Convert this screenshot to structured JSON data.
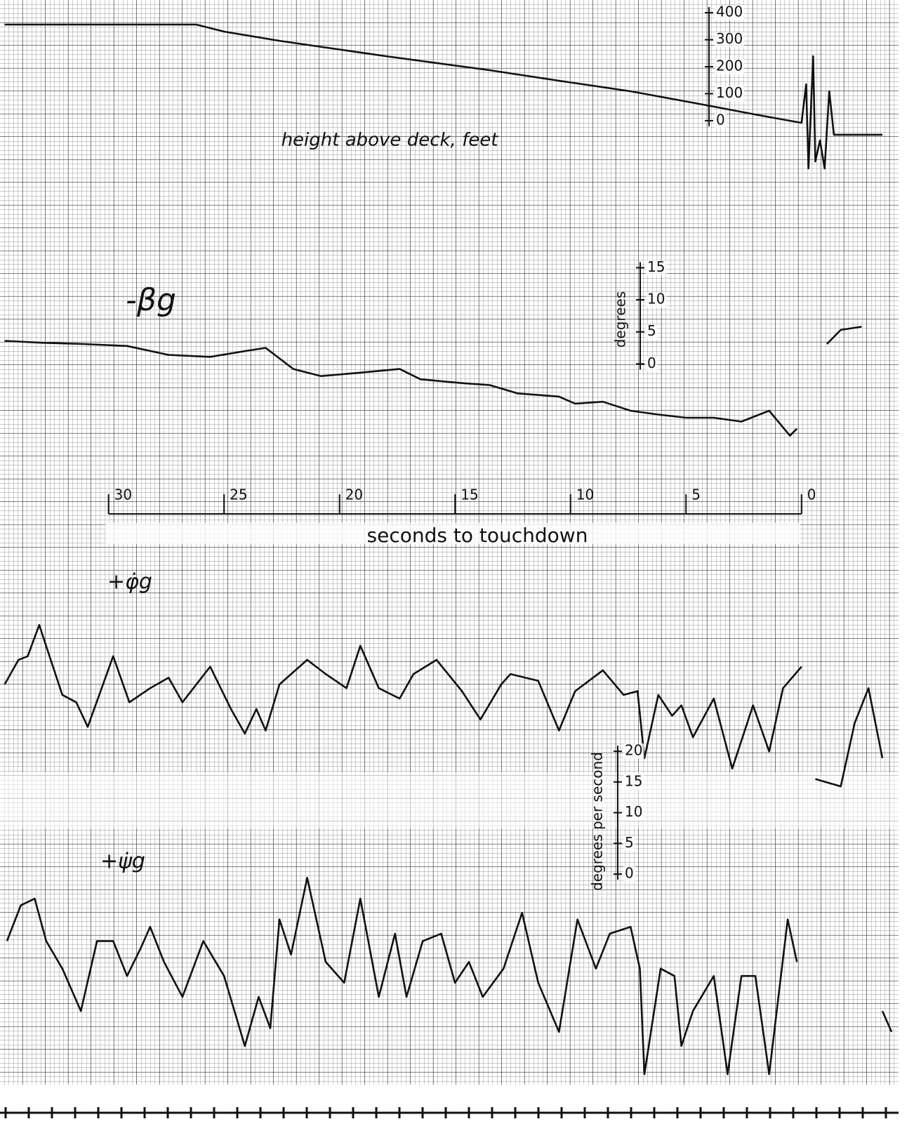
{
  "chart_data": [
    {
      "type": "line",
      "title": "height above deck, feet",
      "color": "#111",
      "grid": true,
      "xlim": [
        34.7,
        -4.2
      ],
      "ylim": [
        -229,
        447
      ],
      "yticks": [
        0,
        100,
        200,
        300,
        400
      ],
      "x": [
        34.5,
        26.2,
        25.0,
        22.6,
        20.5,
        18.0,
        13.5,
        10.5,
        7.4,
        4.4,
        2.0,
        0.0,
        -0.2,
        -0.3,
        -0.5,
        -0.6,
        -0.8,
        -1.0,
        -1.2,
        -1.4,
        -3.5
      ],
      "values": [
        356,
        356,
        330,
        296,
        270,
        239,
        187,
        148,
        109,
        62,
        23,
        -8,
        135,
        -177,
        239,
        -151,
        -73,
        -177,
        109,
        -52,
        -52
      ]
    },
    {
      "type": "line",
      "title": "-βg",
      "ylabel": "degrees",
      "color": "#111",
      "grid": true,
      "xlim": [
        34.7,
        -4.2
      ],
      "xticks": [
        30,
        25,
        20,
        15,
        10,
        5,
        0
      ],
      "xlabel": "seconds to touchdown",
      "ylim": [
        -18.8,
        26.1
      ],
      "yticks": [
        0,
        5,
        10,
        15
      ],
      "x": [
        34.5,
        32.9,
        31.1,
        29.2,
        27.4,
        25.6,
        24.1,
        23.2,
        22.0,
        20.8,
        18.9,
        17.4,
        16.5,
        14.7,
        13.5,
        12.3,
        10.5,
        9.8,
        8.6,
        7.4,
        6.2,
        5.0,
        3.8,
        2.6,
        1.4,
        0.5,
        0.2,
        -0.5,
        -1.1,
        -1.7,
        -2.6
      ],
      "values": [
        3.6,
        3.3,
        3.1,
        2.8,
        1.4,
        1.1,
        2.0,
        2.5,
        -0.8,
        -1.9,
        -1.3,
        -0.8,
        -2.4,
        -3.0,
        -3.3,
        -4.6,
        -5.1,
        -6.2,
        -5.9,
        -7.3,
        -7.9,
        -8.4,
        -8.4,
        -9.0,
        -7.3,
        -11.2,
        -10.1,
        null,
        3.1,
        5.3,
        5.8
      ]
    },
    {
      "type": "line",
      "title": "+φ̇g",
      "color": "#111",
      "grid": true,
      "xlim": [
        34.7,
        -4.2
      ],
      "ylim": [
        -12,
        22.3
      ],
      "x": [
        34.5,
        33.9,
        33.5,
        33.0,
        32.6,
        32.0,
        31.4,
        30.9,
        29.8,
        29.1,
        28.2,
        27.4,
        26.8,
        25.6,
        24.7,
        24.1,
        23.6,
        23.2,
        22.6,
        21.4,
        20.6,
        19.7,
        19.1,
        18.3,
        17.4,
        16.8,
        15.8,
        14.7,
        13.9,
        13.0,
        12.6,
        11.4,
        10.5,
        9.8,
        8.6,
        7.7,
        7.1,
        6.8,
        6.2,
        5.6,
        5.2,
        4.7,
        3.8,
        3.0,
        2.1,
        1.4,
        0.8,
        0.0,
        -0.3,
        -0.6,
        -1.7,
        -2.3,
        -2.9,
        -3.5
      ],
      "values": [
        2.3,
        6.3,
        6.9,
        12.0,
        7.4,
        0.6,
        -0.6,
        -4.6,
        6.9,
        -0.6,
        1.7,
        3.4,
        -0.6,
        5.2,
        -1.7,
        -5.7,
        -1.7,
        -5.2,
        2.3,
        6.3,
        4.0,
        1.7,
        8.6,
        1.7,
        0.0,
        4.0,
        6.3,
        1.2,
        -3.4,
        2.3,
        4.0,
        2.9,
        -5.2,
        1.2,
        4.6,
        0.6,
        1.2,
        -9.7,
        0.6,
        -2.8,
        -1.1,
        -6.3,
        0.0,
        -11.4,
        -1.1,
        -8.6,
        1.7,
        5.2,
        null,
        -13.1,
        -14.3,
        -4.0,
        1.7,
        -9.7
      ]
    },
    {
      "type": "line",
      "title": "+ψ̇g",
      "ylabel": "degrees per second",
      "color": "#111",
      "grid": true,
      "xlim": [
        34.7,
        -4.2
      ],
      "ylim": [
        -34.3,
        22.3
      ],
      "yticks": [
        0,
        5,
        10,
        15,
        20
      ],
      "x": [
        34.4,
        33.8,
        33.2,
        32.7,
        32.0,
        31.2,
        30.5,
        29.8,
        29.2,
        28.6,
        28.2,
        27.6,
        26.8,
        25.9,
        25.0,
        24.1,
        23.5,
        23.0,
        22.6,
        22.1,
        21.4,
        20.6,
        19.8,
        19.1,
        18.3,
        17.6,
        17.1,
        16.4,
        15.6,
        15.0,
        14.4,
        13.8,
        12.9,
        12.1,
        11.4,
        10.5,
        9.7,
        8.9,
        8.3,
        7.4,
        7.0,
        6.8,
        6.1,
        5.5,
        5.2,
        4.7,
        3.8,
        3.2,
        2.6,
        2.0,
        1.4,
        0.6,
        0.2,
        -0.5,
        -3.5,
        -3.9
      ],
      "values": [
        -10.9,
        -5.1,
        -4.0,
        -10.9,
        -15.4,
        -22.3,
        -10.9,
        -10.9,
        -16.6,
        -12.0,
        -8.6,
        -14.3,
        -20.0,
        -10.9,
        -16.6,
        -28.0,
        -20.0,
        -25.1,
        -7.4,
        -13.1,
        -0.6,
        -14.3,
        -17.7,
        -4.0,
        -20.0,
        -9.7,
        -20.0,
        -10.9,
        -9.7,
        -17.7,
        -14.3,
        -20.0,
        -15.4,
        -6.3,
        -17.7,
        -25.7,
        -7.4,
        -15.4,
        -9.7,
        -8.6,
        -15.4,
        -32.6,
        -15.4,
        -16.6,
        -28.0,
        -22.3,
        -16.6,
        -32.6,
        -16.6,
        -16.6,
        -32.6,
        -7.4,
        -14.3,
        null,
        -22.3,
        -25.7
      ]
    }
  ]
}
